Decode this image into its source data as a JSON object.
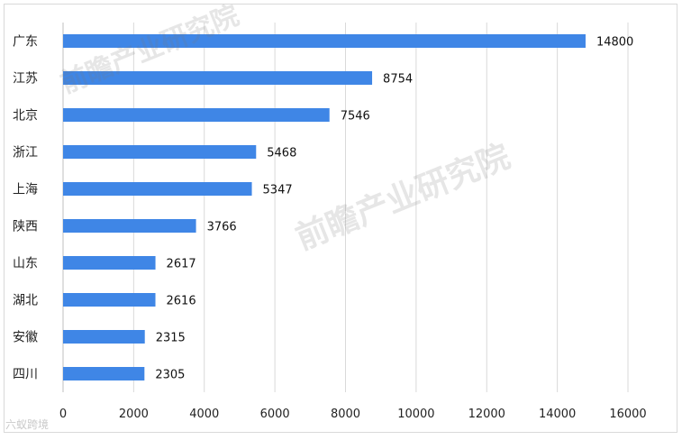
{
  "chart_data": {
    "type": "bar",
    "orientation": "horizontal",
    "categories": [
      "广东",
      "江苏",
      "北京",
      "浙江",
      "上海",
      "陕西",
      "山东",
      "湖北",
      "安徽",
      "四川"
    ],
    "values": [
      14800,
      8754,
      7546,
      5468,
      5347,
      3766,
      2617,
      2616,
      2315,
      2305
    ],
    "xlim": [
      0,
      16000
    ],
    "xticks": [
      0,
      2000,
      4000,
      6000,
      8000,
      10000,
      12000,
      14000,
      16000
    ],
    "grid": "vertical",
    "bar_color": "#3f86e6",
    "legend": "none"
  },
  "watermarks": {
    "brand": "前瞻产业研究院",
    "bottom_logo": "六蚁跨境"
  }
}
